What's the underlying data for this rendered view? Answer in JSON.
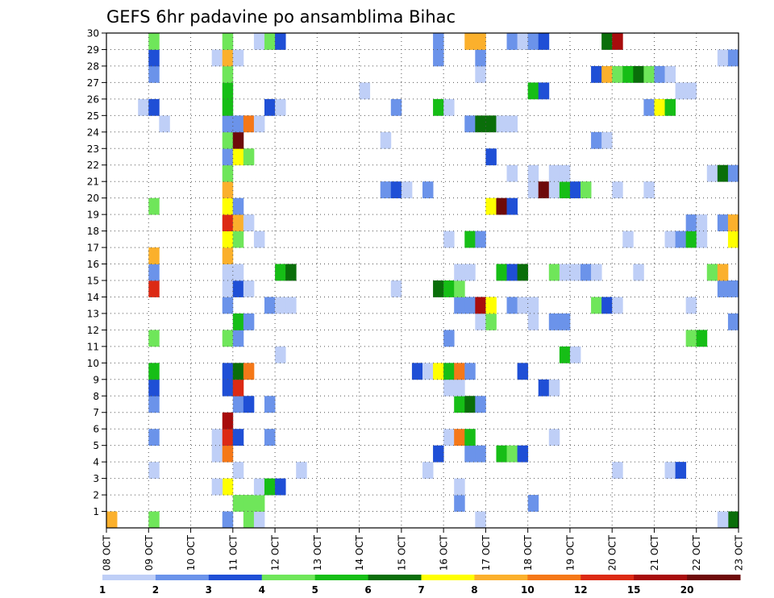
{
  "chart_data": {
    "type": "heatmap",
    "title": "GEFS 6hr padavine po ansamblima Bihac",
    "xlabel": "",
    "ylabel": "",
    "x_ticks": [
      "08 OCT",
      "09 OCT",
      "10 OCT",
      "11 OCT",
      "12 OCT",
      "13 OCT",
      "14 OCT",
      "15 OCT",
      "16 OCT",
      "17 OCT",
      "18 OCT",
      "19 OCT",
      "20 OCT",
      "21 OCT",
      "22 OCT",
      "23 OCT"
    ],
    "y_ticks": [
      "1",
      "2",
      "3",
      "4",
      "5",
      "6",
      "7",
      "8",
      "9",
      "10",
      "11",
      "12",
      "13",
      "14",
      "15",
      "16",
      "17",
      "18",
      "19",
      "20",
      "21",
      "22",
      "23",
      "24",
      "25",
      "26",
      "27",
      "28",
      "29",
      "30"
    ],
    "xlim": [
      0,
      60
    ],
    "ylim": [
      0,
      30
    ],
    "grid": true,
    "color_levels": [
      1,
      2,
      3,
      4,
      5,
      6,
      7,
      8,
      10,
      12,
      15,
      20
    ],
    "colorbar_labels": [
      "1",
      "2",
      "3",
      "4",
      "5",
      "6",
      "7",
      "8",
      "10",
      "12",
      "15",
      "20"
    ],
    "colors": [
      "#bfcff7",
      "#6b93ea",
      "#1f4fd6",
      "#6fe65a",
      "#16be16",
      "#0a6e0a",
      "#ffff00",
      "#fbb02c",
      "#f57818",
      "#dc2a14",
      "#a80c0c",
      "#6e0a0a"
    ],
    "cells": [
      [
        0,
        0,
        7
      ],
      [
        4,
        0,
        3
      ],
      [
        11,
        0,
        1
      ],
      [
        13,
        0,
        3
      ],
      [
        14,
        0,
        0
      ],
      [
        35,
        0,
        0
      ],
      [
        59,
        0,
        5
      ],
      [
        58,
        0,
        0
      ],
      [
        12,
        1,
        3
      ],
      [
        13,
        1,
        3
      ],
      [
        14,
        1,
        3
      ],
      [
        33,
        1,
        1
      ],
      [
        40,
        1,
        1
      ],
      [
        33,
        2,
        0
      ],
      [
        11,
        2,
        6
      ],
      [
        10,
        2,
        0
      ],
      [
        14,
        2,
        0
      ],
      [
        15,
        2,
        4
      ],
      [
        16,
        2,
        2
      ],
      [
        4,
        3,
        0
      ],
      [
        12,
        3,
        0
      ],
      [
        18,
        3,
        0
      ],
      [
        30,
        3,
        0
      ],
      [
        48,
        3,
        0
      ],
      [
        53,
        3,
        0
      ],
      [
        54,
        3,
        2
      ],
      [
        10,
        4,
        0
      ],
      [
        11,
        4,
        8
      ],
      [
        31,
        4,
        2
      ],
      [
        34,
        4,
        1
      ],
      [
        35,
        4,
        1
      ],
      [
        37,
        4,
        4
      ],
      [
        38,
        4,
        3
      ],
      [
        39,
        4,
        2
      ],
      [
        4,
        5,
        1
      ],
      [
        10,
        5,
        0
      ],
      [
        11,
        5,
        9
      ],
      [
        12,
        5,
        2
      ],
      [
        15,
        5,
        1
      ],
      [
        32,
        5,
        0
      ],
      [
        33,
        5,
        8
      ],
      [
        34,
        5,
        4
      ],
      [
        42,
        5,
        0
      ],
      [
        11,
        6,
        10
      ],
      [
        4,
        7,
        1
      ],
      [
        12,
        7,
        1
      ],
      [
        13,
        7,
        2
      ],
      [
        15,
        7,
        1
      ],
      [
        33,
        7,
        4
      ],
      [
        34,
        7,
        5
      ],
      [
        35,
        7,
        1
      ],
      [
        4,
        8,
        2
      ],
      [
        11,
        8,
        2
      ],
      [
        12,
        8,
        9
      ],
      [
        32,
        8,
        0
      ],
      [
        33,
        8,
        0
      ],
      [
        41,
        8,
        2
      ],
      [
        42,
        8,
        0
      ],
      [
        4,
        9,
        4
      ],
      [
        11,
        9,
        2
      ],
      [
        12,
        9,
        5
      ],
      [
        13,
        9,
        8
      ],
      [
        29,
        9,
        2
      ],
      [
        30,
        9,
        0
      ],
      [
        31,
        9,
        6
      ],
      [
        32,
        9,
        4
      ],
      [
        33,
        9,
        8
      ],
      [
        34,
        9,
        1
      ],
      [
        39,
        9,
        2
      ],
      [
        16,
        10,
        0
      ],
      [
        43,
        10,
        4
      ],
      [
        44,
        10,
        0
      ],
      [
        4,
        11,
        3
      ],
      [
        11,
        11,
        3
      ],
      [
        12,
        11,
        1
      ],
      [
        32,
        11,
        1
      ],
      [
        55,
        11,
        3
      ],
      [
        56,
        11,
        4
      ],
      [
        12,
        12,
        4
      ],
      [
        13,
        12,
        1
      ],
      [
        35,
        12,
        0
      ],
      [
        36,
        12,
        3
      ],
      [
        40,
        12,
        0
      ],
      [
        42,
        12,
        1
      ],
      [
        43,
        12,
        1
      ],
      [
        59,
        12,
        1
      ],
      [
        11,
        13,
        1
      ],
      [
        15,
        13,
        1
      ],
      [
        16,
        13,
        0
      ],
      [
        17,
        13,
        0
      ],
      [
        33,
        13,
        1
      ],
      [
        34,
        13,
        1
      ],
      [
        35,
        13,
        10
      ],
      [
        36,
        13,
        6
      ],
      [
        38,
        13,
        1
      ],
      [
        39,
        13,
        0
      ],
      [
        40,
        13,
        0
      ],
      [
        46,
        13,
        3
      ],
      [
        47,
        13,
        2
      ],
      [
        48,
        13,
        0
      ],
      [
        55,
        13,
        0
      ],
      [
        4,
        14,
        9
      ],
      [
        11,
        14,
        0
      ],
      [
        12,
        14,
        2
      ],
      [
        13,
        14,
        0
      ],
      [
        27,
        14,
        0
      ],
      [
        31,
        14,
        5
      ],
      [
        32,
        14,
        4
      ],
      [
        33,
        14,
        3
      ],
      [
        58,
        14,
        1
      ],
      [
        59,
        14,
        1
      ],
      [
        4,
        15,
        1
      ],
      [
        11,
        15,
        0
      ],
      [
        12,
        15,
        0
      ],
      [
        16,
        15,
        4
      ],
      [
        17,
        15,
        5
      ],
      [
        33,
        15,
        0
      ],
      [
        34,
        15,
        0
      ],
      [
        37,
        15,
        4
      ],
      [
        38,
        15,
        2
      ],
      [
        39,
        15,
        5
      ],
      [
        42,
        15,
        3
      ],
      [
        43,
        15,
        0
      ],
      [
        44,
        15,
        0
      ],
      [
        45,
        15,
        1
      ],
      [
        46,
        15,
        0
      ],
      [
        50,
        15,
        0
      ],
      [
        57,
        15,
        3
      ],
      [
        58,
        15,
        7
      ],
      [
        4,
        16,
        7
      ],
      [
        11,
        16,
        7
      ],
      [
        11,
        17,
        6
      ],
      [
        12,
        17,
        3
      ],
      [
        14,
        17,
        0
      ],
      [
        32,
        17,
        0
      ],
      [
        34,
        17,
        4
      ],
      [
        35,
        17,
        1
      ],
      [
        49,
        17,
        0
      ],
      [
        53,
        17,
        0
      ],
      [
        54,
        17,
        1
      ],
      [
        55,
        17,
        4
      ],
      [
        56,
        17,
        0
      ],
      [
        59,
        17,
        6
      ],
      [
        11,
        18,
        9
      ],
      [
        12,
        18,
        7
      ],
      [
        13,
        18,
        0
      ],
      [
        55,
        18,
        1
      ],
      [
        56,
        18,
        0
      ],
      [
        58,
        18,
        1
      ],
      [
        59,
        18,
        7
      ],
      [
        60,
        18,
        10
      ],
      [
        4,
        19,
        3
      ],
      [
        11,
        19,
        6
      ],
      [
        12,
        19,
        1
      ],
      [
        36,
        19,
        6
      ],
      [
        37,
        19,
        11
      ],
      [
        38,
        19,
        2
      ],
      [
        11,
        20,
        7
      ],
      [
        26,
        20,
        1
      ],
      [
        27,
        20,
        2
      ],
      [
        28,
        20,
        0
      ],
      [
        30,
        20,
        1
      ],
      [
        40,
        20,
        0
      ],
      [
        41,
        20,
        11
      ],
      [
        42,
        20,
        0
      ],
      [
        43,
        20,
        4
      ],
      [
        44,
        20,
        2
      ],
      [
        45,
        20,
        3
      ],
      [
        48,
        20,
        0
      ],
      [
        51,
        20,
        0
      ],
      [
        11,
        21,
        3
      ],
      [
        38,
        21,
        0
      ],
      [
        40,
        21,
        0
      ],
      [
        42,
        21,
        0
      ],
      [
        43,
        21,
        0
      ],
      [
        57,
        21,
        0
      ],
      [
        58,
        21,
        5
      ],
      [
        59,
        21,
        1
      ],
      [
        11,
        22,
        1
      ],
      [
        12,
        22,
        6
      ],
      [
        13,
        22,
        3
      ],
      [
        36,
        22,
        2
      ],
      [
        11,
        23,
        3
      ],
      [
        12,
        23,
        11
      ],
      [
        26,
        23,
        0
      ],
      [
        46,
        23,
        1
      ],
      [
        47,
        23,
        0
      ],
      [
        5,
        24,
        0
      ],
      [
        11,
        24,
        1
      ],
      [
        12,
        24,
        1
      ],
      [
        13,
        24,
        8
      ],
      [
        14,
        24,
        0
      ],
      [
        34,
        24,
        1
      ],
      [
        35,
        24,
        5
      ],
      [
        36,
        24,
        5
      ],
      [
        37,
        24,
        0
      ],
      [
        38,
        24,
        0
      ],
      [
        3,
        25,
        0
      ],
      [
        4,
        25,
        2
      ],
      [
        11,
        25,
        4
      ],
      [
        15,
        25,
        2
      ],
      [
        16,
        25,
        0
      ],
      [
        27,
        25,
        1
      ],
      [
        31,
        25,
        4
      ],
      [
        32,
        25,
        0
      ],
      [
        51,
        25,
        1
      ],
      [
        52,
        25,
        6
      ],
      [
        53,
        25,
        4
      ],
      [
        11,
        26,
        4
      ],
      [
        24,
        26,
        0
      ],
      [
        40,
        26,
        4
      ],
      [
        41,
        26,
        2
      ],
      [
        54,
        26,
        0
      ],
      [
        55,
        26,
        0
      ],
      [
        4,
        27,
        1
      ],
      [
        11,
        27,
        3
      ],
      [
        35,
        27,
        0
      ],
      [
        46,
        27,
        2
      ],
      [
        47,
        27,
        7
      ],
      [
        48,
        27,
        3
      ],
      [
        49,
        27,
        4
      ],
      [
        50,
        27,
        5
      ],
      [
        51,
        27,
        3
      ],
      [
        52,
        27,
        1
      ],
      [
        53,
        27,
        0
      ],
      [
        4,
        28,
        2
      ],
      [
        10,
        28,
        0
      ],
      [
        11,
        28,
        7
      ],
      [
        12,
        28,
        0
      ],
      [
        31,
        28,
        1
      ],
      [
        35,
        28,
        1
      ],
      [
        58,
        28,
        0
      ],
      [
        59,
        28,
        1
      ],
      [
        60,
        28,
        10
      ],
      [
        4,
        29,
        3
      ],
      [
        11,
        29,
        3
      ],
      [
        14,
        29,
        0
      ],
      [
        15,
        29,
        3
      ],
      [
        16,
        29,
        2
      ],
      [
        31,
        29,
        1
      ],
      [
        34,
        29,
        7
      ],
      [
        35,
        29,
        7
      ],
      [
        38,
        29,
        1
      ],
      [
        39,
        29,
        0
      ],
      [
        40,
        29,
        1
      ],
      [
        41,
        29,
        2
      ],
      [
        47,
        29,
        5
      ],
      [
        48,
        29,
        10
      ]
    ]
  }
}
